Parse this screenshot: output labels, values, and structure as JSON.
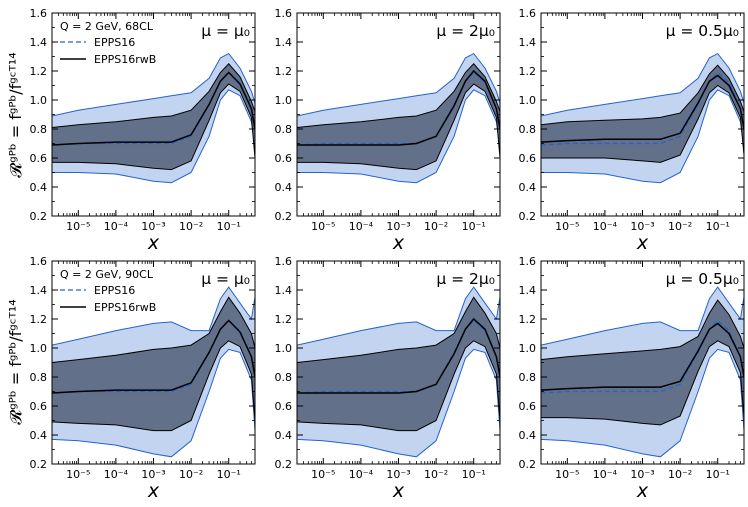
{
  "figure": {
    "ylabel_main": "𝓡ᵍᴾᵇ = fᵍᴾᵇ/fᵍᶜᵀ¹⁴",
    "xlabel": "x"
  },
  "chart_data": [
    {
      "type": "line",
      "row": 1,
      "col": 1,
      "title": "μ = μ₀",
      "legend": {
        "scale": "Q = 2 GeV,  68CL",
        "entries": [
          {
            "name": "EPPS16",
            "style": "dashed",
            "color": "#2563c9"
          },
          {
            "name": "EPPS16rwB",
            "style": "solid",
            "color": "#000000"
          }
        ]
      },
      "xscale": "log",
      "xlim": [
        2e-06,
        0.5
      ],
      "ylim": [
        0.2,
        1.6
      ],
      "xticks": [
        "10⁻⁵",
        "10⁻⁴",
        "10⁻³",
        "10⁻²",
        "10⁻¹"
      ],
      "yticks": [
        "0.2",
        "0.4",
        "0.6",
        "0.8",
        "1.0",
        "1.2",
        "1.4",
        "1.6"
      ],
      "x": [
        2e-06,
        1e-05,
        0.0001,
        0.001,
        0.003,
        0.01,
        0.03,
        0.06,
        0.1,
        0.2,
        0.4,
        0.5
      ],
      "series": [
        {
          "name": "EPPS16 upper",
          "values": [
            0.89,
            0.93,
            0.97,
            1.01,
            1.03,
            1.05,
            1.15,
            1.29,
            1.32,
            1.22,
            1.06,
            0.98
          ]
        },
        {
          "name": "EPPS16 lower",
          "values": [
            0.5,
            0.5,
            0.49,
            0.44,
            0.43,
            0.5,
            0.75,
            1.0,
            1.07,
            1.03,
            0.85,
            0.68
          ]
        },
        {
          "name": "EPPS16rwB upper",
          "values": [
            0.81,
            0.83,
            0.85,
            0.88,
            0.89,
            0.93,
            1.06,
            1.19,
            1.25,
            1.16,
            0.99,
            0.92
          ]
        },
        {
          "name": "EPPS16rwB lower",
          "values": [
            0.57,
            0.57,
            0.56,
            0.53,
            0.52,
            0.58,
            0.86,
            1.05,
            1.11,
            1.06,
            0.88,
            0.6
          ]
        },
        {
          "name": "EPPS16",
          "values": [
            0.69,
            0.7,
            0.7,
            0.7,
            0.7,
            0.75,
            0.97,
            1.13,
            1.19,
            1.12,
            0.94,
            0.82
          ]
        },
        {
          "name": "EPPS16rwB",
          "values": [
            0.69,
            0.7,
            0.71,
            0.71,
            0.71,
            0.76,
            0.97,
            1.13,
            1.19,
            1.11,
            0.94,
            0.8
          ]
        }
      ]
    },
    {
      "type": "line",
      "row": 1,
      "col": 2,
      "title": "μ = 2μ₀",
      "xscale": "log",
      "xlim": [
        2e-06,
        0.5
      ],
      "ylim": [
        0.2,
        1.6
      ],
      "xticks": [
        "10⁻⁵",
        "10⁻⁴",
        "10⁻³",
        "10⁻²",
        "10⁻¹"
      ],
      "yticks": [
        "0.2",
        "0.4",
        "0.6",
        "0.8",
        "1.0",
        "1.2",
        "1.4",
        "1.6"
      ],
      "x": [
        2e-06,
        1e-05,
        0.0001,
        0.001,
        0.003,
        0.01,
        0.03,
        0.06,
        0.1,
        0.2,
        0.4,
        0.5
      ],
      "series": [
        {
          "name": "EPPS16 upper",
          "values": [
            0.89,
            0.93,
            0.97,
            1.01,
            1.03,
            1.05,
            1.15,
            1.29,
            1.32,
            1.22,
            1.06,
            0.98
          ]
        },
        {
          "name": "EPPS16 lower",
          "values": [
            0.5,
            0.5,
            0.49,
            0.44,
            0.43,
            0.5,
            0.75,
            1.0,
            1.07,
            1.03,
            0.85,
            0.68
          ]
        },
        {
          "name": "EPPS16rwB upper",
          "values": [
            0.81,
            0.83,
            0.85,
            0.88,
            0.89,
            0.93,
            1.06,
            1.19,
            1.25,
            1.16,
            0.99,
            0.92
          ]
        },
        {
          "name": "EPPS16rwB lower",
          "values": [
            0.57,
            0.57,
            0.56,
            0.53,
            0.52,
            0.58,
            0.86,
            1.05,
            1.11,
            1.06,
            0.88,
            0.6
          ]
        },
        {
          "name": "EPPS16",
          "values": [
            0.69,
            0.7,
            0.7,
            0.7,
            0.7,
            0.75,
            0.97,
            1.13,
            1.19,
            1.12,
            0.94,
            0.82
          ]
        },
        {
          "name": "EPPS16rwB",
          "values": [
            0.69,
            0.69,
            0.69,
            0.69,
            0.7,
            0.75,
            0.96,
            1.13,
            1.2,
            1.13,
            0.94,
            0.8
          ]
        }
      ]
    },
    {
      "type": "line",
      "row": 1,
      "col": 3,
      "title": "μ = 0.5μ₀",
      "xscale": "log",
      "xlim": [
        2e-06,
        0.5
      ],
      "ylim": [
        0.2,
        1.6
      ],
      "xticks": [
        "10⁻⁵",
        "10⁻⁴",
        "10⁻³",
        "10⁻²",
        "10⁻¹"
      ],
      "yticks": [
        "0.2",
        "0.4",
        "0.6",
        "0.8",
        "1.0",
        "1.2",
        "1.4",
        "1.6"
      ],
      "x": [
        2e-06,
        1e-05,
        0.0001,
        0.001,
        0.003,
        0.01,
        0.03,
        0.06,
        0.1,
        0.2,
        0.4,
        0.5
      ],
      "series": [
        {
          "name": "EPPS16 upper",
          "values": [
            0.89,
            0.93,
            0.97,
            1.01,
            1.03,
            1.05,
            1.15,
            1.29,
            1.32,
            1.22,
            1.06,
            0.98
          ]
        },
        {
          "name": "EPPS16 lower",
          "values": [
            0.5,
            0.5,
            0.49,
            0.44,
            0.43,
            0.5,
            0.75,
            1.0,
            1.07,
            1.03,
            0.85,
            0.68
          ]
        },
        {
          "name": "EPPS16rwB upper",
          "values": [
            0.83,
            0.85,
            0.86,
            0.87,
            0.88,
            0.91,
            1.05,
            1.18,
            1.24,
            1.15,
            0.99,
            0.92
          ]
        },
        {
          "name": "EPPS16rwB lower",
          "values": [
            0.6,
            0.6,
            0.6,
            0.58,
            0.57,
            0.62,
            0.87,
            1.05,
            1.1,
            1.05,
            0.88,
            0.62
          ]
        },
        {
          "name": "EPPS16",
          "values": [
            0.69,
            0.7,
            0.7,
            0.7,
            0.7,
            0.75,
            0.97,
            1.13,
            1.19,
            1.12,
            0.94,
            0.82
          ]
        },
        {
          "name": "EPPS16rwB",
          "values": [
            0.71,
            0.72,
            0.73,
            0.73,
            0.73,
            0.77,
            0.98,
            1.13,
            1.17,
            1.1,
            0.94,
            0.8
          ]
        }
      ]
    },
    {
      "type": "line",
      "row": 2,
      "col": 1,
      "title": "μ = μ₀",
      "legend": {
        "scale": "Q = 2 GeV,  90CL",
        "entries": [
          {
            "name": "EPPS16",
            "style": "dashed",
            "color": "#2563c9"
          },
          {
            "name": "EPPS16rwB",
            "style": "solid",
            "color": "#000000"
          }
        ]
      },
      "xscale": "log",
      "xlim": [
        2e-06,
        0.5
      ],
      "ylim": [
        0.2,
        1.6
      ],
      "xticks": [
        "10⁻⁵",
        "10⁻⁴",
        "10⁻³",
        "10⁻²",
        "10⁻¹"
      ],
      "yticks": [
        "0.2",
        "0.4",
        "0.6",
        "0.8",
        "1.0",
        "1.2",
        "1.4",
        "1.6"
      ],
      "x": [
        2e-06,
        1e-05,
        0.0001,
        0.001,
        0.003,
        0.01,
        0.03,
        0.06,
        0.1,
        0.2,
        0.4,
        0.5
      ],
      "series": [
        {
          "name": "EPPS16 upper",
          "values": [
            1.02,
            1.06,
            1.12,
            1.17,
            1.18,
            1.12,
            1.12,
            1.34,
            1.42,
            1.31,
            1.2,
            1.35
          ]
        },
        {
          "name": "EPPS16 lower",
          "values": [
            0.37,
            0.36,
            0.33,
            0.27,
            0.25,
            0.36,
            0.7,
            0.93,
            0.99,
            0.97,
            0.78,
            0.43
          ]
        },
        {
          "name": "EPPS16rwB upper",
          "values": [
            0.9,
            0.92,
            0.95,
            0.99,
            1.0,
            1.02,
            1.1,
            1.25,
            1.35,
            1.24,
            1.1,
            1.0
          ]
        },
        {
          "name": "EPPS16rwB lower",
          "values": [
            0.49,
            0.48,
            0.47,
            0.43,
            0.43,
            0.5,
            0.82,
            1.0,
            1.05,
            1.01,
            0.82,
            0.5
          ]
        },
        {
          "name": "EPPS16",
          "values": [
            0.69,
            0.7,
            0.7,
            0.7,
            0.7,
            0.75,
            0.97,
            1.13,
            1.19,
            1.12,
            0.94,
            0.82
          ]
        },
        {
          "name": "EPPS16rwB",
          "values": [
            0.69,
            0.7,
            0.71,
            0.71,
            0.71,
            0.76,
            0.97,
            1.13,
            1.19,
            1.11,
            0.94,
            0.8
          ]
        }
      ]
    },
    {
      "type": "line",
      "row": 2,
      "col": 2,
      "title": "μ = 2μ₀",
      "xscale": "log",
      "xlim": [
        2e-06,
        0.5
      ],
      "ylim": [
        0.2,
        1.6
      ],
      "xticks": [
        "10⁻⁵",
        "10⁻⁴",
        "10⁻³",
        "10⁻²",
        "10⁻¹"
      ],
      "yticks": [
        "0.2",
        "0.4",
        "0.6",
        "0.8",
        "1.0",
        "1.2",
        "1.4",
        "1.6"
      ],
      "x": [
        2e-06,
        1e-05,
        0.0001,
        0.001,
        0.003,
        0.01,
        0.03,
        0.06,
        0.1,
        0.2,
        0.4,
        0.5
      ],
      "series": [
        {
          "name": "EPPS16 upper",
          "values": [
            1.02,
            1.06,
            1.12,
            1.17,
            1.18,
            1.12,
            1.12,
            1.34,
            1.42,
            1.31,
            1.2,
            1.35
          ]
        },
        {
          "name": "EPPS16 lower",
          "values": [
            0.37,
            0.36,
            0.33,
            0.27,
            0.25,
            0.36,
            0.7,
            0.93,
            0.99,
            0.97,
            0.78,
            0.43
          ]
        },
        {
          "name": "EPPS16rwB upper",
          "values": [
            0.9,
            0.92,
            0.95,
            0.99,
            1.0,
            1.02,
            1.1,
            1.25,
            1.35,
            1.24,
            1.1,
            1.0
          ]
        },
        {
          "name": "EPPS16rwB lower",
          "values": [
            0.49,
            0.48,
            0.47,
            0.43,
            0.43,
            0.5,
            0.82,
            1.0,
            1.05,
            1.01,
            0.82,
            0.5
          ]
        },
        {
          "name": "EPPS16",
          "values": [
            0.69,
            0.7,
            0.7,
            0.7,
            0.7,
            0.75,
            0.97,
            1.13,
            1.19,
            1.12,
            0.94,
            0.82
          ]
        },
        {
          "name": "EPPS16rwB",
          "values": [
            0.69,
            0.69,
            0.69,
            0.69,
            0.7,
            0.75,
            0.96,
            1.13,
            1.2,
            1.13,
            0.94,
            0.8
          ]
        }
      ]
    },
    {
      "type": "line",
      "row": 2,
      "col": 3,
      "title": "μ = 0.5μ₀",
      "xscale": "log",
      "xlim": [
        2e-06,
        0.5
      ],
      "ylim": [
        0.2,
        1.6
      ],
      "xticks": [
        "10⁻⁵",
        "10⁻⁴",
        "10⁻³",
        "10⁻²",
        "10⁻¹"
      ],
      "yticks": [
        "0.2",
        "0.4",
        "0.6",
        "0.8",
        "1.0",
        "1.2",
        "1.4",
        "1.6"
      ],
      "x": [
        2e-06,
        1e-05,
        0.0001,
        0.001,
        0.003,
        0.01,
        0.03,
        0.06,
        0.1,
        0.2,
        0.4,
        0.5
      ],
      "series": [
        {
          "name": "EPPS16 upper",
          "values": [
            1.02,
            1.06,
            1.12,
            1.17,
            1.18,
            1.12,
            1.12,
            1.34,
            1.42,
            1.31,
            1.2,
            1.35
          ]
        },
        {
          "name": "EPPS16 lower",
          "values": [
            0.37,
            0.36,
            0.33,
            0.27,
            0.25,
            0.36,
            0.7,
            0.93,
            0.99,
            0.97,
            0.78,
            0.43
          ]
        },
        {
          "name": "EPPS16rwB upper",
          "values": [
            0.92,
            0.94,
            0.96,
            0.98,
            0.99,
            1.01,
            1.08,
            1.24,
            1.33,
            1.23,
            1.08,
            1.0
          ]
        },
        {
          "name": "EPPS16rwB lower",
          "values": [
            0.52,
            0.52,
            0.51,
            0.48,
            0.47,
            0.53,
            0.84,
            1.01,
            1.05,
            1.01,
            0.83,
            0.52
          ]
        },
        {
          "name": "EPPS16",
          "values": [
            0.69,
            0.7,
            0.7,
            0.7,
            0.7,
            0.75,
            0.97,
            1.13,
            1.19,
            1.12,
            0.94,
            0.82
          ]
        },
        {
          "name": "EPPS16rwB",
          "values": [
            0.71,
            0.72,
            0.73,
            0.73,
            0.73,
            0.77,
            0.98,
            1.13,
            1.17,
            1.1,
            0.94,
            0.8
          ]
        }
      ]
    }
  ]
}
